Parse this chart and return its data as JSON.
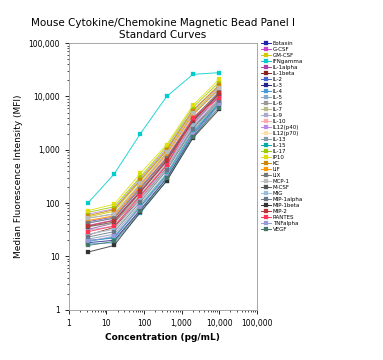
{
  "title": "Mouse Cytokine/Chemokine Magnetic Bead Panel I\nStandard Curves",
  "xlabel": "Concentration (pg/mL)",
  "ylabel": "Median Fluorescence Intensity (MFI)",
  "x_conc": [
    3.2,
    16,
    80,
    400,
    2000,
    10000
  ],
  "series": [
    {
      "name": "Eotaxin",
      "color": "#2222AA",
      "y": [
        45,
        55,
        200,
        700,
        3500,
        11000
      ]
    },
    {
      "name": "G-CSF",
      "color": "#CC44CC",
      "y": [
        38,
        48,
        160,
        600,
        3200,
        10500
      ]
    },
    {
      "name": "GM-CSF",
      "color": "#CCCC00",
      "y": [
        55,
        70,
        260,
        950,
        5000,
        15000
      ]
    },
    {
      "name": "IFNgamma",
      "color": "#00CCCC",
      "y": [
        100,
        350,
        2000,
        10000,
        26000,
        28000
      ]
    },
    {
      "name": "IL-1alpha",
      "color": "#AA44AA",
      "y": [
        32,
        42,
        140,
        520,
        3000,
        10200
      ]
    },
    {
      "name": "IL-1beta",
      "color": "#882222",
      "y": [
        25,
        35,
        120,
        450,
        2600,
        9000
      ]
    },
    {
      "name": "IL-2",
      "color": "#4466CC",
      "y": [
        20,
        22,
        85,
        320,
        2000,
        7500
      ]
    },
    {
      "name": "IL-3",
      "color": "#222288",
      "y": [
        18,
        20,
        75,
        290,
        1900,
        7200
      ]
    },
    {
      "name": "IL-4",
      "color": "#4499DD",
      "y": [
        17,
        18,
        65,
        260,
        1700,
        7000
      ]
    },
    {
      "name": "IL-5",
      "color": "#88AACC",
      "y": [
        42,
        52,
        190,
        710,
        3800,
        12500
      ]
    },
    {
      "name": "IL-6",
      "color": "#999999",
      "y": [
        52,
        62,
        225,
        860,
        4600,
        13500
      ]
    },
    {
      "name": "IL-7",
      "color": "#BBBB88",
      "y": [
        36,
        42,
        145,
        560,
        3300,
        10800
      ]
    },
    {
      "name": "IL-9",
      "color": "#AAAACC",
      "y": [
        31,
        37,
        125,
        490,
        2900,
        9800
      ]
    },
    {
      "name": "IL-10",
      "color": "#FFAAAA",
      "y": [
        46,
        56,
        205,
        760,
        4300,
        8200
      ]
    },
    {
      "name": "IL12(p40)",
      "color": "#BB88EE",
      "y": [
        62,
        78,
        290,
        1050,
        5600,
        15500
      ]
    },
    {
      "name": "IL12(p70)",
      "color": "#FFDDAA",
      "y": [
        26,
        32,
        115,
        430,
        2600,
        7200
      ]
    },
    {
      "name": "IL-13",
      "color": "#8899AA",
      "y": [
        21,
        26,
        95,
        360,
        2300,
        7800
      ]
    },
    {
      "name": "IL-15",
      "color": "#00AAAA",
      "y": [
        19,
        23,
        88,
        340,
        2150,
        7400
      ]
    },
    {
      "name": "IL-17",
      "color": "#99CC00",
      "y": [
        67,
        85,
        310,
        1150,
        6200,
        18500
      ]
    },
    {
      "name": "IP10",
      "color": "#DDDD11",
      "y": [
        72,
        95,
        360,
        1250,
        6800,
        21000
      ]
    },
    {
      "name": "KC",
      "color": "#CC8800",
      "y": [
        58,
        75,
        270,
        980,
        5400,
        16500
      ]
    },
    {
      "name": "LIF",
      "color": "#FF9900",
      "y": [
        47,
        58,
        215,
        820,
        4500,
        14000
      ]
    },
    {
      "name": "LIX",
      "color": "#777777",
      "y": [
        42,
        52,
        185,
        700,
        3900,
        12000
      ]
    },
    {
      "name": "MCP-1",
      "color": "#BBBBBB",
      "y": [
        52,
        63,
        235,
        890,
        4800,
        14500
      ]
    },
    {
      "name": "M-CSF",
      "color": "#555555",
      "y": [
        36,
        44,
        160,
        620,
        3400,
        11200
      ]
    },
    {
      "name": "MIG",
      "color": "#99BBDD",
      "y": [
        26,
        32,
        115,
        440,
        2700,
        8800
      ]
    },
    {
      "name": "MIP-1alpha",
      "color": "#667788",
      "y": [
        23,
        29,
        105,
        410,
        2500,
        8200
      ]
    },
    {
      "name": "MIP-1beta",
      "color": "#333333",
      "y": [
        12,
        16,
        68,
        260,
        1650,
        5700
      ]
    },
    {
      "name": "MIP-2",
      "color": "#BB3333",
      "y": [
        37,
        47,
        170,
        650,
        3600,
        11500
      ]
    },
    {
      "name": "RANTES",
      "color": "#FF3355",
      "y": [
        29,
        37,
        135,
        510,
        3900,
        9500
      ]
    },
    {
      "name": "TNFalpha",
      "color": "#9999DD",
      "y": [
        19,
        24,
        83,
        320,
        1950,
        7000
      ]
    },
    {
      "name": "VEGF",
      "color": "#447766",
      "y": [
        16,
        19,
        72,
        290,
        1750,
        6200
      ]
    }
  ],
  "xlim": [
    1,
    100000
  ],
  "ylim": [
    1,
    100000
  ],
  "bg_color": "#ffffff"
}
